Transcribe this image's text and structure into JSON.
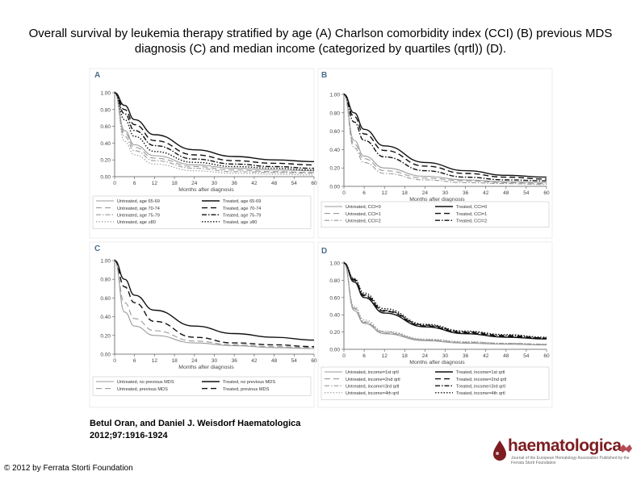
{
  "title": "Overall survival by leukemia therapy stratified by age (A) Charlson comorbidity index (CCI) (B) previous MDS diagnosis (C) and median income (categorized by quartiles (qrtl)) (D).",
  "citation": {
    "line1": "Betul Oran, and Daniel J. Weisdorf Haematologica",
    "line2": "2012;97:1916-1924"
  },
  "copyright": "© 2012 by Ferrata Storti Foundation",
  "logo": {
    "name": "haematologica",
    "tagline": "Journal of the European Hematology Association Published by the Ferrata Storti Foundation"
  },
  "colors": {
    "treated": "#111111",
    "untreated": "#9a9a9a",
    "axis": "#555555",
    "brand": "#7d1d20"
  },
  "chart_data": [
    {
      "panel": "A",
      "type": "line",
      "xlabel": "Months after diagnosis",
      "ylabel": "",
      "x_ticks": [
        "0",
        "6",
        "12",
        "18",
        "24",
        "30",
        "36",
        "42",
        "48",
        "54",
        "60"
      ],
      "y_ticks": [
        "0.00",
        "0.20",
        "0.40",
        "0.60",
        "0.80",
        "1.00"
      ],
      "xlim": [
        0,
        60
      ],
      "ylim": [
        0,
        1
      ],
      "x": [
        0,
        3,
        6,
        12,
        24,
        36,
        48,
        60
      ],
      "series": [
        {
          "name": "Untreated, age 65-69",
          "group": "untreated",
          "dash": "solid",
          "values": [
            1,
            0.55,
            0.38,
            0.25,
            0.14,
            0.1,
            0.08,
            0.07
          ]
        },
        {
          "name": "Untreated, age 70-74",
          "group": "untreated",
          "dash": "long",
          "values": [
            1,
            0.52,
            0.35,
            0.22,
            0.12,
            0.08,
            0.06,
            0.05
          ]
        },
        {
          "name": "Untreated, age 75-79",
          "group": "untreated",
          "dash": "dashdot",
          "values": [
            1,
            0.48,
            0.31,
            0.19,
            0.1,
            0.06,
            0.05,
            0.04
          ]
        },
        {
          "name": "Untreated, age ≥80",
          "group": "untreated",
          "dash": "dot",
          "values": [
            1,
            0.42,
            0.26,
            0.15,
            0.07,
            0.04,
            0.03,
            0.02
          ]
        },
        {
          "name": "Treated, age 65-69",
          "group": "treated",
          "dash": "solid",
          "values": [
            1,
            0.85,
            0.68,
            0.5,
            0.32,
            0.24,
            0.2,
            0.18
          ]
        },
        {
          "name": "Treated, age 70-74",
          "group": "treated",
          "dash": "long",
          "values": [
            1,
            0.8,
            0.62,
            0.43,
            0.26,
            0.19,
            0.16,
            0.14
          ]
        },
        {
          "name": "Treated, age 75-79",
          "group": "treated",
          "dash": "dashdot",
          "values": [
            1,
            0.75,
            0.55,
            0.37,
            0.21,
            0.15,
            0.12,
            0.1
          ]
        },
        {
          "name": "Treated, age ≥80",
          "group": "treated",
          "dash": "dot",
          "values": [
            1,
            0.68,
            0.48,
            0.3,
            0.17,
            0.12,
            0.1,
            0.08
          ]
        }
      ]
    },
    {
      "panel": "B",
      "type": "line",
      "xlabel": "Months after diagnosis",
      "ylabel": "",
      "x_ticks": [
        "0",
        "6",
        "12",
        "18",
        "24",
        "30",
        "36",
        "42",
        "48",
        "54",
        "60"
      ],
      "y_ticks": [
        "0.00",
        "0.20",
        "0.40",
        "0.60",
        "0.80",
        "1.00"
      ],
      "xlim": [
        0,
        60
      ],
      "ylim": [
        0,
        1
      ],
      "x": [
        0,
        3,
        6,
        12,
        24,
        36,
        48,
        60
      ],
      "series": [
        {
          "name": "Untreated, CCI=0",
          "group": "untreated",
          "dash": "solid",
          "values": [
            1,
            0.5,
            0.33,
            0.2,
            0.11,
            0.07,
            0.05,
            0.04
          ]
        },
        {
          "name": "Untreated, CCI=1",
          "group": "untreated",
          "dash": "long",
          "values": [
            1,
            0.46,
            0.3,
            0.17,
            0.09,
            0.06,
            0.04,
            0.03
          ]
        },
        {
          "name": "Untreated, CCI=2",
          "group": "untreated",
          "dash": "dashdot",
          "values": [
            1,
            0.42,
            0.26,
            0.14,
            0.07,
            0.04,
            0.03,
            0.02
          ]
        },
        {
          "name": "Treated, CCI=0",
          "group": "treated",
          "dash": "solid",
          "values": [
            1,
            0.8,
            0.62,
            0.44,
            0.26,
            0.17,
            0.12,
            0.1
          ]
        },
        {
          "name": "Treated, CCI=1",
          "group": "treated",
          "dash": "long",
          "values": [
            1,
            0.76,
            0.57,
            0.39,
            0.22,
            0.14,
            0.1,
            0.08
          ]
        },
        {
          "name": "Treated, CCI=2",
          "group": "treated",
          "dash": "dashdot",
          "values": [
            1,
            0.7,
            0.5,
            0.32,
            0.17,
            0.1,
            0.07,
            0.06
          ]
        }
      ]
    },
    {
      "panel": "C",
      "type": "line",
      "xlabel": "Months after diagnosis",
      "ylabel": "",
      "x_ticks": [
        "0",
        "6",
        "12",
        "18",
        "24",
        "30",
        "36",
        "42",
        "48",
        "54",
        "60"
      ],
      "y_ticks": [
        "0.00",
        "0.20",
        "0.40",
        "0.60",
        "0.80",
        "1.00"
      ],
      "xlim": [
        0,
        60
      ],
      "ylim": [
        0,
        1
      ],
      "x": [
        0,
        3,
        6,
        12,
        24,
        36,
        48,
        60
      ],
      "series": [
        {
          "name": "Untreated, no previous MDS",
          "group": "untreated",
          "dash": "solid",
          "values": [
            1,
            0.45,
            0.3,
            0.2,
            0.12,
            0.09,
            0.07,
            0.06
          ]
        },
        {
          "name": "Untreated, previous MDS",
          "group": "untreated",
          "dash": "long",
          "values": [
            1,
            0.55,
            0.38,
            0.25,
            0.14,
            0.1,
            0.08,
            0.07
          ]
        },
        {
          "name": "Treated, no previous MDS",
          "group": "treated",
          "dash": "solid",
          "values": [
            1,
            0.8,
            0.63,
            0.47,
            0.3,
            0.22,
            0.18,
            0.15
          ]
        },
        {
          "name": "Treated, previous MDS",
          "group": "treated",
          "dash": "long",
          "values": [
            1,
            0.72,
            0.55,
            0.35,
            0.18,
            0.12,
            0.1,
            0.08
          ]
        }
      ]
    },
    {
      "panel": "D",
      "type": "line",
      "xlabel": "Months after diagnosis",
      "ylabel": "",
      "x_ticks": [
        "0",
        "6",
        "12",
        "18",
        "24",
        "30",
        "36",
        "42",
        "48",
        "54",
        "60"
      ],
      "y_ticks": [
        "0.00",
        "0.20",
        "0.40",
        "0.60",
        "0.80",
        "1.00"
      ],
      "xlim": [
        0,
        60
      ],
      "ylim": [
        0,
        1
      ],
      "x": [
        0,
        3,
        6,
        12,
        24,
        36,
        48,
        60
      ],
      "series": [
        {
          "name": "Untreated, income=1st qrtl",
          "group": "untreated",
          "dash": "solid",
          "values": [
            1,
            0.45,
            0.3,
            0.18,
            0.1,
            0.07,
            0.06,
            0.05
          ]
        },
        {
          "name": "Untreated, income=2nd qrtl",
          "group": "untreated",
          "dash": "long",
          "values": [
            1,
            0.47,
            0.31,
            0.19,
            0.11,
            0.08,
            0.06,
            0.05
          ]
        },
        {
          "name": "Untreated, income=3rd qrtl",
          "group": "untreated",
          "dash": "dashdot",
          "values": [
            1,
            0.48,
            0.32,
            0.2,
            0.11,
            0.08,
            0.07,
            0.06
          ]
        },
        {
          "name": "Untreated, income=4th qrtl",
          "group": "untreated",
          "dash": "dot",
          "values": [
            1,
            0.5,
            0.34,
            0.21,
            0.12,
            0.09,
            0.07,
            0.06
          ]
        },
        {
          "name": "Treated, income=1st qrtl",
          "group": "treated",
          "dash": "solid",
          "values": [
            1,
            0.78,
            0.6,
            0.42,
            0.26,
            0.18,
            0.14,
            0.12
          ]
        },
        {
          "name": "Treated, income=2nd qrtl",
          "group": "treated",
          "dash": "long",
          "values": [
            1,
            0.8,
            0.62,
            0.44,
            0.27,
            0.19,
            0.15,
            0.13
          ]
        },
        {
          "name": "Treated, income=3rd qrtl",
          "group": "treated",
          "dash": "dashdot",
          "values": [
            1,
            0.81,
            0.63,
            0.45,
            0.28,
            0.2,
            0.16,
            0.13
          ]
        },
        {
          "name": "Treated, income=4th qrtl",
          "group": "treated",
          "dash": "dot",
          "values": [
            1,
            0.82,
            0.65,
            0.47,
            0.29,
            0.21,
            0.17,
            0.14
          ]
        }
      ]
    }
  ]
}
